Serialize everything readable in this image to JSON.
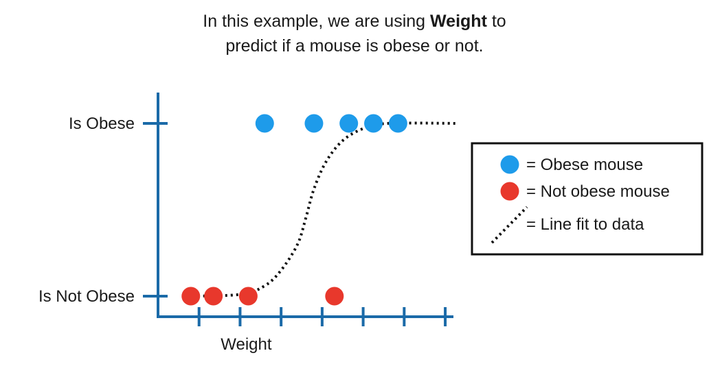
{
  "caption": {
    "line1_prefix": "In this example, we are using ",
    "line1_bold": "Weight",
    "line1_suffix": " to",
    "line2": "predict if a mouse is obese or not."
  },
  "chart_data": {
    "type": "scatter",
    "title": "",
    "xlabel": "Weight",
    "ylabel": "",
    "xlim": [
      0,
      7.2
    ],
    "ylim": [
      0,
      1
    ],
    "y_tick_labels": [
      {
        "value": 1,
        "label": "Is Obese"
      },
      {
        "value": 0,
        "label": "Is Not Obese"
      }
    ],
    "x_ticks": [
      1,
      2,
      3,
      4,
      5,
      6,
      7
    ],
    "series": [
      {
        "name": "Obese mouse",
        "color": "#1e9bea",
        "points": [
          {
            "x": 2.6,
            "y": 1
          },
          {
            "x": 3.8,
            "y": 1
          },
          {
            "x": 4.65,
            "y": 1
          },
          {
            "x": 5.25,
            "y": 1
          },
          {
            "x": 5.85,
            "y": 1
          }
        ]
      },
      {
        "name": "Not obese mouse",
        "color": "#e8382c",
        "points": [
          {
            "x": 0.8,
            "y": 0
          },
          {
            "x": 1.35,
            "y": 0
          },
          {
            "x": 2.2,
            "y": 0
          },
          {
            "x": 4.3,
            "y": 0
          }
        ]
      }
    ],
    "fit_line": {
      "name": "Line fit to data",
      "style": "dotted",
      "color": "#111111",
      "points": [
        {
          "x": 0.7,
          "y": 0.0
        },
        {
          "x": 2.0,
          "y": 0.01
        },
        {
          "x": 2.6,
          "y": 0.06
        },
        {
          "x": 3.0,
          "y": 0.15
        },
        {
          "x": 3.4,
          "y": 0.3
        },
        {
          "x": 3.6,
          "y": 0.45
        },
        {
          "x": 3.8,
          "y": 0.62
        },
        {
          "x": 4.1,
          "y": 0.78
        },
        {
          "x": 4.5,
          "y": 0.9
        },
        {
          "x": 5.0,
          "y": 0.97
        },
        {
          "x": 5.6,
          "y": 1.0
        },
        {
          "x": 7.3,
          "y": 1.0
        }
      ]
    },
    "axis_color": "#1a6aa8",
    "grid": false,
    "legend_position": "right"
  },
  "legend": {
    "items": [
      {
        "marker": "circle",
        "color": "#1e9bea",
        "label": "= Obese mouse"
      },
      {
        "marker": "circle",
        "color": "#e8382c",
        "label": "= Not obese mouse"
      },
      {
        "marker": "dotted-line",
        "color": "#111111",
        "label": "= Line fit to data"
      }
    ]
  }
}
